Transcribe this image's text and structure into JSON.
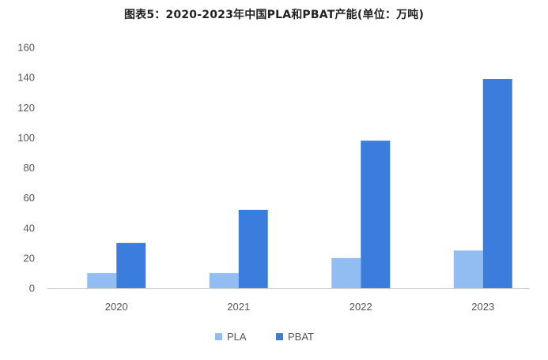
{
  "chart_data": {
    "type": "bar",
    "title": "图表5：2020-2023年中国PLA和PBAT产能(单位：万吨)",
    "categories": [
      "2020",
      "2021",
      "2022",
      "2023"
    ],
    "series": [
      {
        "name": "PLA",
        "values": [
          10,
          10,
          20,
          25
        ],
        "color": "#92bdf2"
      },
      {
        "name": "PBAT",
        "values": [
          30,
          52,
          98,
          139
        ],
        "color": "#3b7ddd"
      }
    ],
    "xlabel": "",
    "ylabel": "",
    "ylim": [
      0,
      160
    ],
    "yticks": [
      0,
      20,
      40,
      60,
      80,
      100,
      120,
      140,
      160
    ],
    "grid": false,
    "legend_position": "bottom-center"
  }
}
